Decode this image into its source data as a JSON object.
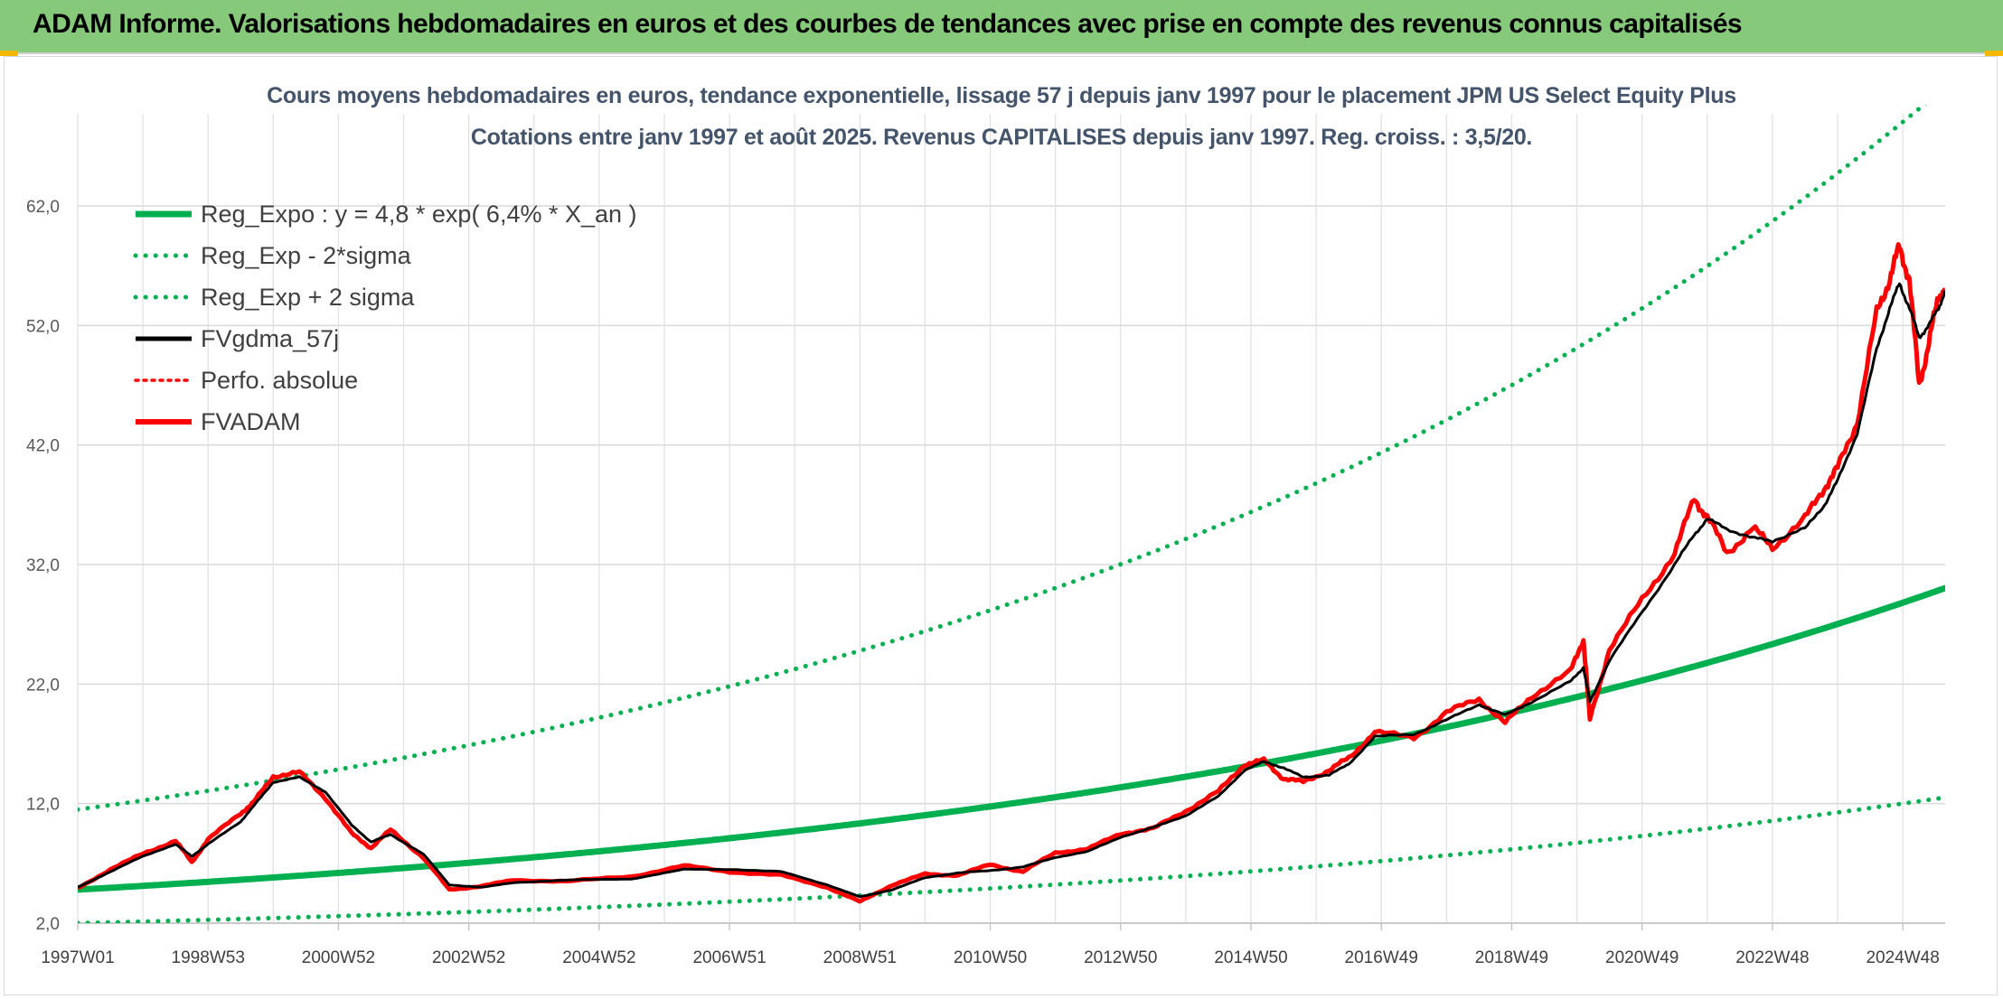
{
  "header": {
    "title": "ADAM Informe. Valorisations hebdomadaires en euros et des courbes de tendances avec prise en compte des revenus connus capitalisés"
  },
  "chart_data": {
    "type": "line",
    "title": "Cours moyens hebdomadaires en euros, tendance exponentielle, lissage 57 j depuis janv 1997 pour le placement JPM US Select Equity Plus",
    "subtitle": "Cotations entre janv 1997 et août 2025. Revenus CAPITALISES depuis janv 1997. Reg. croiss. : 3,5/20.",
    "xlabel": "",
    "ylabel": "",
    "x_ticks": [
      "1997W01",
      "1998W53",
      "2000W52",
      "2002W52",
      "2004W52",
      "2006W51",
      "2008W51",
      "2010W50",
      "2012W50",
      "2014W50",
      "2016W49",
      "2018W49",
      "2020W49",
      "2022W48",
      "2024W48"
    ],
    "y_ticks": [
      "2,0",
      "12,0",
      "22,0",
      "32,0",
      "42,0",
      "52,0",
      "62,0"
    ],
    "ylim": [
      2,
      68
    ],
    "xlim": [
      1997.0,
      2025.65
    ],
    "grid": true,
    "legend_position": "top-left",
    "x": [
      1997.0,
      1997.5,
      1998.0,
      1998.5,
      1998.75,
      1999.0,
      1999.5,
      1999.7,
      2000.0,
      2000.4,
      2000.8,
      2001.2,
      2001.5,
      2001.8,
      2002.3,
      2002.7,
      2003.2,
      2003.7,
      2004.5,
      2005.5,
      2006.3,
      2007.0,
      2007.8,
      2008.5,
      2009.0,
      2009.5,
      2010.0,
      2010.5,
      2011.0,
      2011.5,
      2012.0,
      2012.5,
      2013.0,
      2013.5,
      2014.0,
      2014.5,
      2014.9,
      2015.2,
      2015.5,
      2015.8,
      2016.2,
      2016.5,
      2016.9,
      2017.5,
      2018.0,
      2018.5,
      2018.9,
      2019.3,
      2019.9,
      2020.1,
      2020.2,
      2020.5,
      2021.0,
      2021.5,
      2021.8,
      2022.0,
      2022.3,
      2022.7,
      2023.0,
      2023.5,
      2023.8,
      2024.0,
      2024.3,
      2024.6,
      2024.8,
      2024.95,
      2025.1,
      2025.25,
      2025.4,
      2025.55,
      2025.65
    ],
    "series": [
      {
        "name": "Reg_Expo : y = 4,8 * exp( 6,4% *  X_an )",
        "color": "#00b050",
        "style": "solid",
        "formula": {
          "a": 4.8,
          "b": 0.064,
          "x0": 1997.0
        }
      },
      {
        "name": "Reg_Exp - 2*sigma",
        "color": "#00b050",
        "style": "dotted",
        "formula": {
          "a": 2.0,
          "b": 0.064,
          "x0": 1997.0
        }
      },
      {
        "name": "Reg_Exp + 2 sigma",
        "color": "#00b050",
        "style": "dotted",
        "formula": {
          "a": 11.5,
          "b": 0.064,
          "x0": 1997.0
        }
      },
      {
        "name": "FVgdma_57j",
        "color": "#000000",
        "style": "solid-thin",
        "values": [
          5.0,
          6.3,
          7.6,
          8.6,
          7.6,
          8.6,
          10.5,
          11.8,
          13.8,
          14.2,
          13.0,
          10.2,
          8.8,
          9.4,
          7.8,
          5.2,
          5.0,
          5.4,
          5.6,
          5.7,
          6.5,
          6.5,
          6.3,
          5.2,
          4.2,
          4.8,
          5.8,
          6.2,
          6.4,
          6.7,
          7.5,
          8.0,
          9.2,
          10.0,
          11.0,
          12.6,
          14.8,
          15.5,
          15.0,
          14.2,
          14.4,
          15.3,
          17.6,
          17.8,
          19.0,
          20.3,
          19.4,
          20.5,
          22.2,
          23.4,
          20.5,
          24.0,
          28.0,
          32.0,
          34.5,
          35.8,
          35.0,
          34.2,
          34.0,
          35.0,
          37.0,
          39.0,
          43.0,
          50.0,
          53.5,
          55.5,
          53.5,
          51.0,
          52.0,
          53.5,
          54.8
        ]
      },
      {
        "name": "Perfo. absolue",
        "color": "#ff0000",
        "style": "dotted"
      },
      {
        "name": "FVADAM",
        "color": "#ff0000",
        "style": "solid",
        "values": [
          4.9,
          6.5,
          7.8,
          8.9,
          7.1,
          9.0,
          11.2,
          12.1,
          14.3,
          14.6,
          12.5,
          9.5,
          8.3,
          9.8,
          7.5,
          4.8,
          5.1,
          5.6,
          5.5,
          5.9,
          6.8,
          6.3,
          6.0,
          5.0,
          3.8,
          5.2,
          6.1,
          6.0,
          6.9,
          6.3,
          7.9,
          8.2,
          9.5,
          9.9,
          11.4,
          13.0,
          15.3,
          15.6,
          14.1,
          13.8,
          14.8,
          15.8,
          18.0,
          17.5,
          19.6,
          20.8,
          18.7,
          21.0,
          23.0,
          25.8,
          19.0,
          25.0,
          29.0,
          33.0,
          37.5,
          36.0,
          33.0,
          35.0,
          33.5,
          35.8,
          38.5,
          40.0,
          44.0,
          53.0,
          56.0,
          58.5,
          56.0,
          47.0,
          50.5,
          54.5,
          55.0
        ]
      }
    ]
  }
}
